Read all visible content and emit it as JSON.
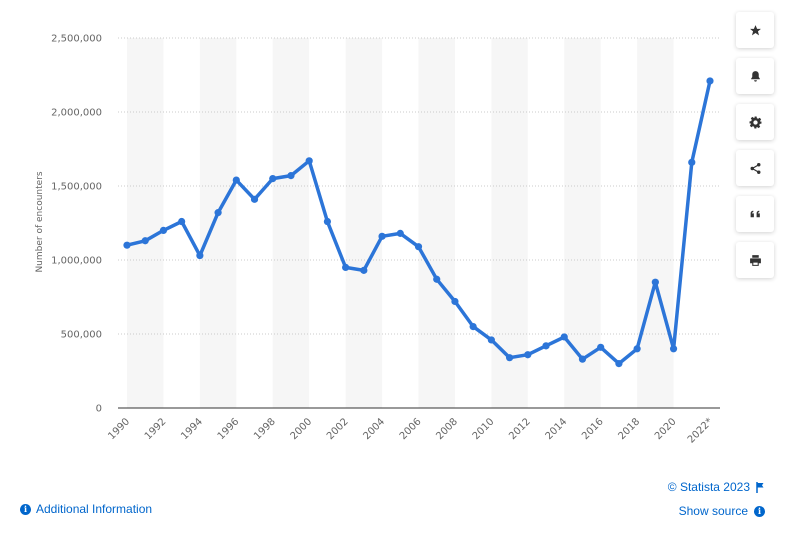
{
  "chart_data": {
    "type": "line",
    "title": "",
    "xlabel": "",
    "ylabel": "Number of encounters",
    "ylim": [
      0,
      2500000
    ],
    "yticks": [
      "0",
      "500,000",
      "1,000,000",
      "1,500,000",
      "2,000,000",
      "2,500,000"
    ],
    "ytick_values": [
      0,
      500000,
      1000000,
      1500000,
      2000000,
      2500000
    ],
    "x": [
      "1990",
      "1991",
      "1992",
      "1993",
      "1994",
      "1995",
      "1996",
      "1997",
      "1998",
      "1999",
      "2000",
      "2001",
      "2002",
      "2003",
      "2004",
      "2005",
      "2006",
      "2007",
      "2008",
      "2009",
      "2010",
      "2011",
      "2012",
      "2013",
      "2014",
      "2015",
      "2016",
      "2017",
      "2018",
      "2019",
      "2020",
      "2021",
      "2022*"
    ],
    "xtick_labels": [
      "1990",
      "1992",
      "1994",
      "1996",
      "1998",
      "2000",
      "2002",
      "2004",
      "2006",
      "2008",
      "2010",
      "2012",
      "2014",
      "2016",
      "2018",
      "2020",
      "2022*"
    ],
    "values": [
      1100000,
      1130000,
      1200000,
      1260000,
      1030000,
      1320000,
      1540000,
      1410000,
      1550000,
      1570000,
      1670000,
      1260000,
      950000,
      930000,
      1160000,
      1180000,
      1090000,
      870000,
      720000,
      550000,
      460000,
      340000,
      360000,
      420000,
      480000,
      330000,
      410000,
      300000,
      400000,
      850000,
      400000,
      1660000,
      2210000
    ],
    "grid": true,
    "legend": "none",
    "line_color": "#2c75d8"
  },
  "toolbar": {
    "items": [
      {
        "name": "favorite-button",
        "icon": "star-icon"
      },
      {
        "name": "notification-button",
        "icon": "bell-icon"
      },
      {
        "name": "settings-button",
        "icon": "gear-icon"
      },
      {
        "name": "share-button",
        "icon": "share-icon"
      },
      {
        "name": "cite-button",
        "icon": "quote-icon"
      },
      {
        "name": "print-button",
        "icon": "print-icon"
      }
    ]
  },
  "footer": {
    "additional_info": "Additional Information",
    "copyright": "© Statista 2023",
    "show_source": "Show source"
  }
}
